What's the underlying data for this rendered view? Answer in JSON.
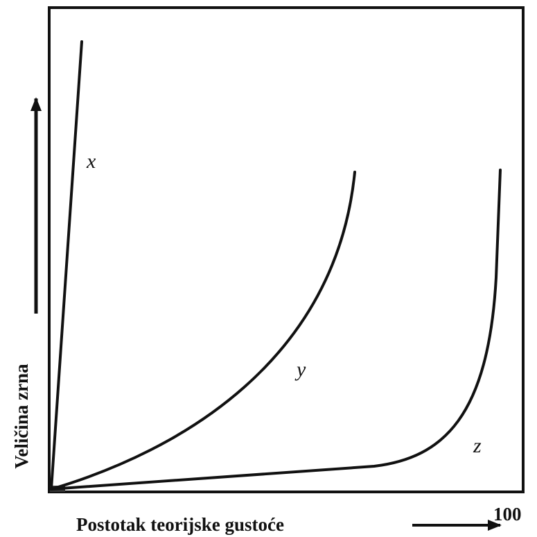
{
  "y_axis_label": "Veličina zrna",
  "x_axis_label": "Postotak teorijske gustoće",
  "x_end_label": "100",
  "curves": [
    {
      "label": "x"
    },
    {
      "label": "y"
    },
    {
      "label": "z"
    }
  ]
}
